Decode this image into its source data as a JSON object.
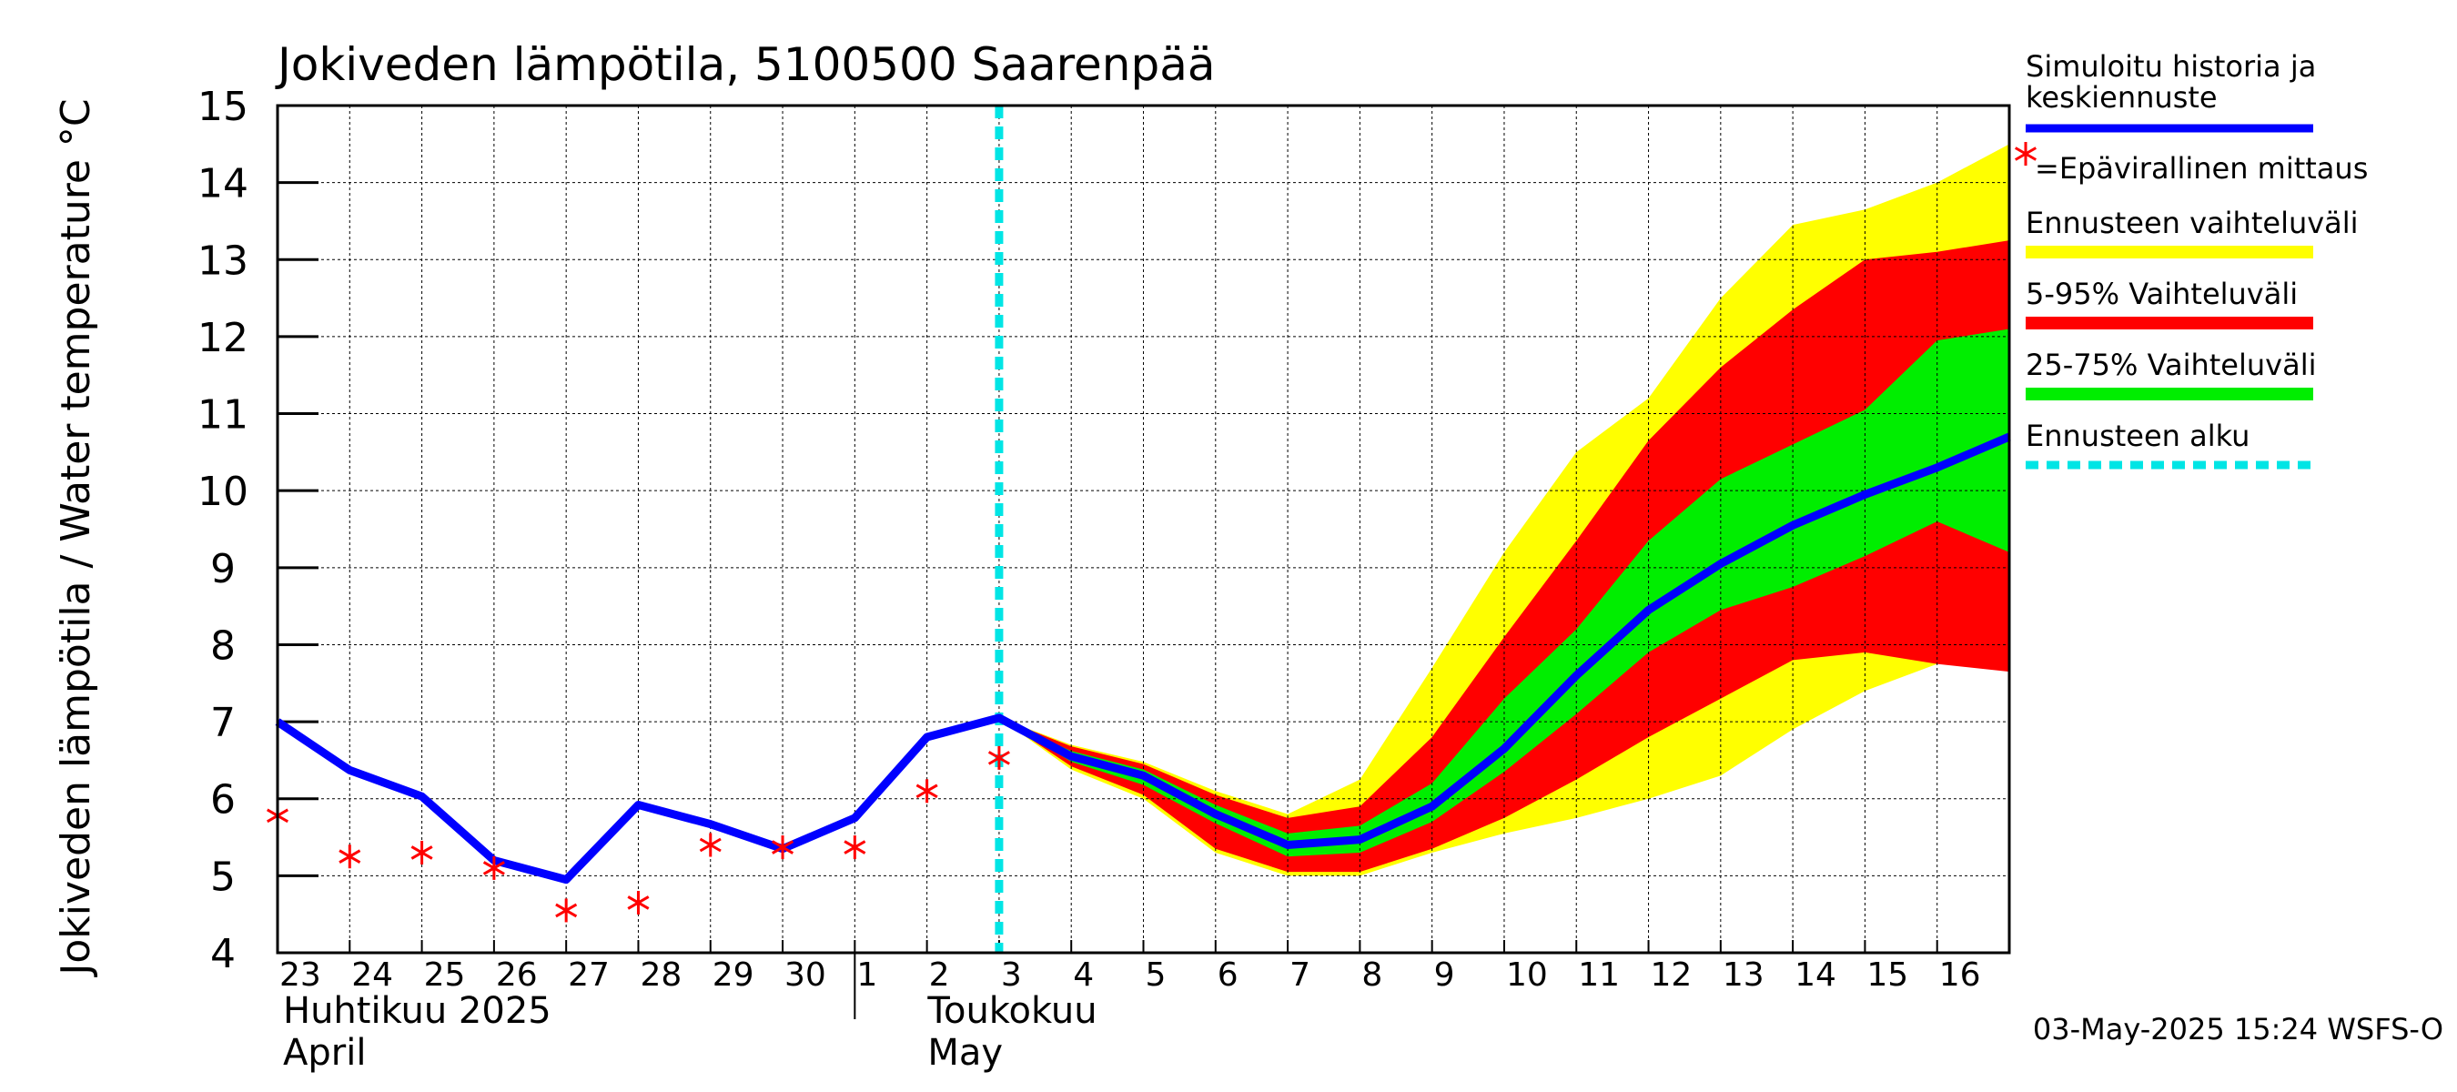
{
  "chart_data": {
    "type": "area",
    "title": "Jokiveden lämpötila, 5100500 Saarenpää",
    "ylabel": "Jokiveden lämpötila / Water temperature   °C",
    "ylim": [
      4,
      15
    ],
    "yticks": [
      4,
      5,
      6,
      7,
      8,
      9,
      10,
      11,
      12,
      13,
      14,
      15
    ],
    "x_tick_labels": [
      "23",
      "24",
      "25",
      "26",
      "27",
      "28",
      "29",
      "30",
      "1",
      "2",
      "3",
      "4",
      "5",
      "6",
      "7",
      "8",
      "9",
      "10",
      "11",
      "12",
      "13",
      "14",
      "15",
      "16"
    ],
    "x_day_range": [
      23,
      47
    ],
    "month_labels": [
      {
        "day": 23,
        "fi": "Huhtikuu  2025",
        "en": "April"
      },
      {
        "day": 31,
        "fi": "Toukokuu",
        "en": "May"
      }
    ],
    "forecast_start_day": 33,
    "timestamp": "03-May-2025 15:24 WSFS-O",
    "grid": true,
    "legend": [
      {
        "label": "Simuloitu historia ja\nkeskiennuste",
        "color": "#0000ff",
        "style": "line"
      },
      {
        "label": "=Epävirallinen mittaus",
        "color": "#ff0000",
        "style": "star"
      },
      {
        "label": "Ennusteen vaihteluväli",
        "color": "#ffff00",
        "style": "band"
      },
      {
        "label": "5-95% Vaihteluväli",
        "color": "#ff0000",
        "style": "band"
      },
      {
        "label": "25-75% Vaihteluväli",
        "color": "#00ee00",
        "style": "band"
      },
      {
        "label": "Ennusteen alku",
        "color": "#00e5e5",
        "style": "dashed"
      }
    ],
    "series": [
      {
        "name": "Simuloitu historia ja keskiennuste",
        "color": "#0000ff",
        "x": [
          23,
          24,
          25,
          26,
          27,
          28,
          29,
          30,
          31,
          32,
          33,
          34,
          35,
          36,
          37,
          38,
          39,
          40,
          41,
          42,
          43,
          44,
          45,
          46,
          47
        ],
        "y": [
          7.0,
          6.37,
          6.03,
          5.2,
          4.95,
          5.92,
          5.67,
          5.35,
          5.75,
          6.8,
          7.05,
          6.55,
          6.3,
          5.8,
          5.4,
          5.47,
          5.9,
          6.65,
          7.6,
          8.45,
          9.05,
          9.55,
          9.95,
          10.3,
          10.7
        ]
      },
      {
        "name": "=Epävirallinen mittaus",
        "color": "#ff0000",
        "x": [
          23,
          24,
          25,
          26,
          27,
          28,
          29,
          30,
          31,
          32,
          33
        ],
        "y": [
          5.78,
          5.25,
          5.3,
          5.1,
          4.55,
          4.65,
          5.4,
          5.37,
          5.37,
          6.1,
          6.53
        ]
      }
    ],
    "bands": [
      {
        "name": "Ennusteen vaihteluväli",
        "color": "#ffff00",
        "x": [
          33,
          34,
          35,
          36,
          37,
          38,
          39,
          40,
          41,
          42,
          43,
          44,
          45,
          46,
          47
        ],
        "upper": [
          7.05,
          6.7,
          6.48,
          6.1,
          5.8,
          6.25,
          7.7,
          9.2,
          10.5,
          11.2,
          12.5,
          13.45,
          13.65,
          14.0,
          14.5
        ],
        "lower": [
          7.05,
          6.38,
          6.0,
          5.3,
          5.0,
          5.0,
          5.3,
          5.55,
          5.75,
          6.0,
          6.3,
          6.9,
          7.4,
          7.75,
          7.75
        ]
      },
      {
        "name": "5-95% Vaihteluväli",
        "color": "#ff0000",
        "x": [
          33,
          34,
          35,
          36,
          37,
          38,
          39,
          40,
          41,
          42,
          43,
          44,
          45,
          46,
          47
        ],
        "upper": [
          7.05,
          6.68,
          6.45,
          6.05,
          5.75,
          5.9,
          6.8,
          8.1,
          9.35,
          10.65,
          11.6,
          12.35,
          13.0,
          13.1,
          13.25
        ],
        "lower": [
          7.05,
          6.42,
          6.05,
          5.35,
          5.05,
          5.05,
          5.35,
          5.75,
          6.25,
          6.8,
          7.3,
          7.8,
          7.9,
          7.75,
          7.65
        ]
      },
      {
        "name": "25-75% Vaihteluväli",
        "color": "#00ee00",
        "x": [
          33,
          34,
          35,
          36,
          37,
          38,
          39,
          40,
          41,
          42,
          43,
          44,
          45,
          46,
          47
        ],
        "upper": [
          7.05,
          6.62,
          6.38,
          5.92,
          5.55,
          5.65,
          6.2,
          7.3,
          8.2,
          9.35,
          10.15,
          10.6,
          11.05,
          11.95,
          12.1
        ],
        "lower": [
          7.05,
          6.48,
          6.18,
          5.68,
          5.25,
          5.3,
          5.7,
          6.35,
          7.1,
          7.9,
          8.45,
          8.75,
          9.15,
          9.6,
          9.2
        ]
      }
    ]
  }
}
